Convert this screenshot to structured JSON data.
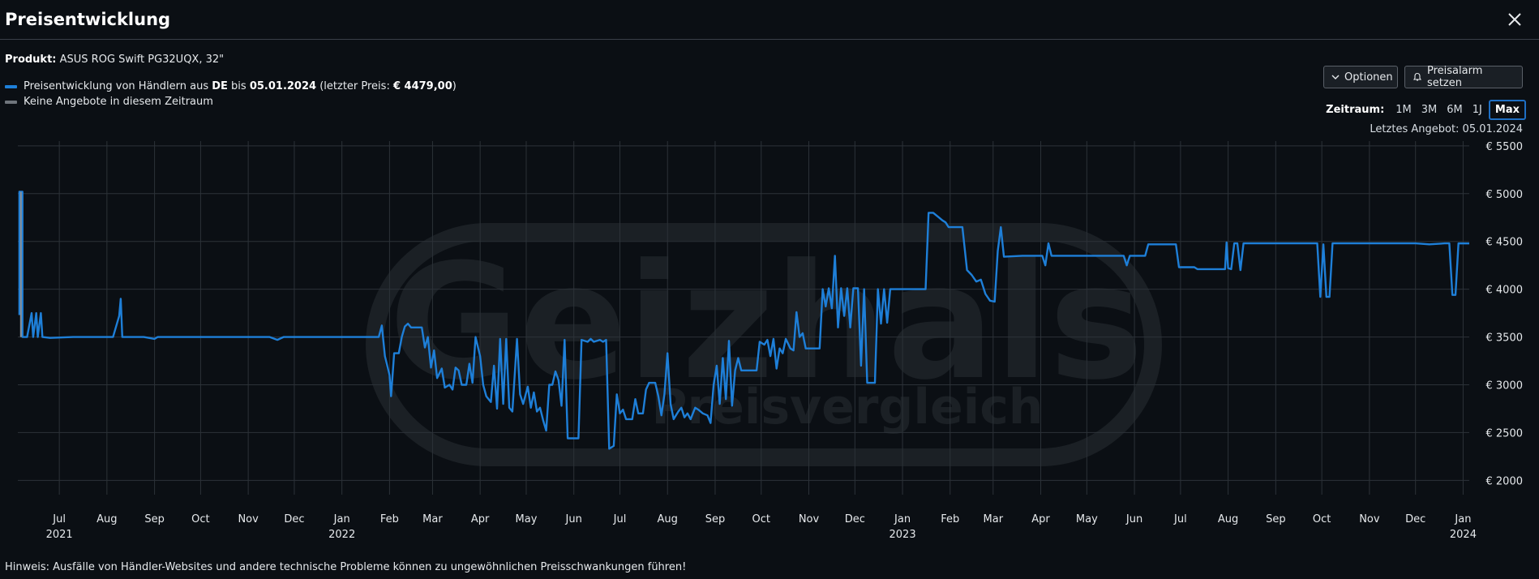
{
  "header": {
    "title": "Preisentwicklung"
  },
  "product": {
    "label": "Produkt:",
    "name": "ASUS ROG Swift PG32UQX, 32\""
  },
  "legend": {
    "series1_prefix": "Preisentwicklung von Händlern aus ",
    "series1_country": "DE",
    "series1_bis": " bis ",
    "series1_date": "05.01.2024",
    "series1_open": " (letzter Preis: ",
    "series1_price": "€ 4479,00",
    "series1_close": ")",
    "series2": "Keine Angebote in diesem Zeitraum"
  },
  "toolbar": {
    "options_label": "Optionen",
    "alarm_label": "Preisalarm setzen"
  },
  "range": {
    "label": "Zeitraum:",
    "options": [
      "1M",
      "3M",
      "6M",
      "1J",
      "Max"
    ],
    "active": "Max"
  },
  "last_offer": "Letztes Angebot: 05.01.2024",
  "watermark": {
    "brand": "Geizhals",
    "tagline": "Preisvergleich"
  },
  "footer": {
    "hint": "Hinweis: Ausfälle von Händler-Websites und andere technische Probleme können zu ungewöhnlichen Preisschwankungen führen!"
  },
  "colors": {
    "series": "#1e7fd8",
    "no_offer": "#8a8f96",
    "grid": "#2c3238",
    "background": "#0b0f14"
  },
  "chart_data": {
    "type": "line",
    "title": "",
    "xlabel": "",
    "ylabel": "",
    "x_range": [
      "2021-06-04",
      "2024-01-05"
    ],
    "ylim": [
      1850,
      5550
    ],
    "y_ticks": [
      2000,
      2500,
      3000,
      3500,
      4000,
      4500,
      5000,
      5500
    ],
    "y_tick_labels": [
      "€ 2000",
      "€ 2500",
      "€ 3000",
      "€ 3500",
      "€ 4000",
      "€ 4500",
      "€ 5000",
      "€ 5500"
    ],
    "x_ticks": [
      {
        "date": "2021-07-01",
        "label": "Jul",
        "year": "2021"
      },
      {
        "date": "2021-08-01",
        "label": "Aug"
      },
      {
        "date": "2021-09-01",
        "label": "Sep"
      },
      {
        "date": "2021-10-01",
        "label": "Oct"
      },
      {
        "date": "2021-11-01",
        "label": "Nov"
      },
      {
        "date": "2021-12-01",
        "label": "Dec"
      },
      {
        "date": "2022-01-01",
        "label": "Jan",
        "year": "2022"
      },
      {
        "date": "2022-02-01",
        "label": "Feb"
      },
      {
        "date": "2022-03-01",
        "label": "Mar"
      },
      {
        "date": "2022-04-01",
        "label": "Apr"
      },
      {
        "date": "2022-05-01",
        "label": "May"
      },
      {
        "date": "2022-06-01",
        "label": "Jun"
      },
      {
        "date": "2022-07-01",
        "label": "Jul"
      },
      {
        "date": "2022-08-01",
        "label": "Aug"
      },
      {
        "date": "2022-09-01",
        "label": "Sep"
      },
      {
        "date": "2022-10-01",
        "label": "Oct"
      },
      {
        "date": "2022-11-01",
        "label": "Nov"
      },
      {
        "date": "2022-12-01",
        "label": "Dec"
      },
      {
        "date": "2023-01-01",
        "label": "Jan",
        "year": "2023"
      },
      {
        "date": "2023-02-01",
        "label": "Feb"
      },
      {
        "date": "2023-03-01",
        "label": "Mar"
      },
      {
        "date": "2023-04-01",
        "label": "Apr"
      },
      {
        "date": "2023-05-01",
        "label": "May"
      },
      {
        "date": "2023-06-01",
        "label": "Jun"
      },
      {
        "date": "2023-07-01",
        "label": "Jul"
      },
      {
        "date": "2023-08-01",
        "label": "Aug"
      },
      {
        "date": "2023-09-01",
        "label": "Sep"
      },
      {
        "date": "2023-10-01",
        "label": "Oct"
      },
      {
        "date": "2023-11-01",
        "label": "Nov"
      },
      {
        "date": "2023-12-01",
        "label": "Dec"
      },
      {
        "date": "2024-01-01",
        "label": "Jan",
        "year": "2024"
      }
    ],
    "grid": true,
    "legend_position": "top-left",
    "series": [
      {
        "name": "Preisentwicklung von Händlern aus DE bis 05.01.2024",
        "points": [
          [
            "2021-06-05",
            3730
          ],
          [
            "2021-06-05",
            5020
          ],
          [
            "2021-06-07",
            5020
          ],
          [
            "2021-06-07",
            3500
          ],
          [
            "2021-06-10",
            3500
          ],
          [
            "2021-06-13",
            3750
          ],
          [
            "2021-06-14",
            3500
          ],
          [
            "2021-06-16",
            3750
          ],
          [
            "2021-06-17",
            3500
          ],
          [
            "2021-06-19",
            3750
          ],
          [
            "2021-06-20",
            3500
          ],
          [
            "2021-06-25",
            3490
          ],
          [
            "2021-07-10",
            3500
          ],
          [
            "2021-08-05",
            3500
          ],
          [
            "2021-08-09",
            3720
          ],
          [
            "2021-08-10",
            3900
          ],
          [
            "2021-08-11",
            3500
          ],
          [
            "2021-08-25",
            3500
          ],
          [
            "2021-09-01",
            3480
          ],
          [
            "2021-09-03",
            3500
          ],
          [
            "2021-11-15",
            3500
          ],
          [
            "2021-11-20",
            3470
          ],
          [
            "2021-11-24",
            3500
          ],
          [
            "2022-01-25",
            3500
          ],
          [
            "2022-01-27",
            3620
          ],
          [
            "2022-01-29",
            3300
          ],
          [
            "2022-02-01",
            3100
          ],
          [
            "2022-02-02",
            2880
          ],
          [
            "2022-02-04",
            3330
          ],
          [
            "2022-02-07",
            3330
          ],
          [
            "2022-02-09",
            3500
          ],
          [
            "2022-02-11",
            3610
          ],
          [
            "2022-02-13",
            3640
          ],
          [
            "2022-02-15",
            3600
          ],
          [
            "2022-02-22",
            3600
          ],
          [
            "2022-02-24",
            3390
          ],
          [
            "2022-02-26",
            3500
          ],
          [
            "2022-02-28",
            3180
          ],
          [
            "2022-03-02",
            3360
          ],
          [
            "2022-03-04",
            3070
          ],
          [
            "2022-03-07",
            3170
          ],
          [
            "2022-03-09",
            2970
          ],
          [
            "2022-03-12",
            3000
          ],
          [
            "2022-03-14",
            2950
          ],
          [
            "2022-03-16",
            3180
          ],
          [
            "2022-03-18",
            3150
          ],
          [
            "2022-03-20",
            3000
          ],
          [
            "2022-03-23",
            3000
          ],
          [
            "2022-03-25",
            3220
          ],
          [
            "2022-03-27",
            3020
          ],
          [
            "2022-03-29",
            3500
          ],
          [
            "2022-04-01",
            3300
          ],
          [
            "2022-04-03",
            3000
          ],
          [
            "2022-04-05",
            2880
          ],
          [
            "2022-04-08",
            2820
          ],
          [
            "2022-04-10",
            3200
          ],
          [
            "2022-04-12",
            2750
          ],
          [
            "2022-04-14",
            3480
          ],
          [
            "2022-04-16",
            2800
          ],
          [
            "2022-04-18",
            3480
          ],
          [
            "2022-04-20",
            2760
          ],
          [
            "2022-04-22",
            2720
          ],
          [
            "2022-04-25",
            3480
          ],
          [
            "2022-04-27",
            2900
          ],
          [
            "2022-04-29",
            2800
          ],
          [
            "2022-05-02",
            2980
          ],
          [
            "2022-05-04",
            2760
          ],
          [
            "2022-05-06",
            2920
          ],
          [
            "2022-05-08",
            2720
          ],
          [
            "2022-05-10",
            2760
          ],
          [
            "2022-05-12",
            2630
          ],
          [
            "2022-05-14",
            2520
          ],
          [
            "2022-05-16",
            3000
          ],
          [
            "2022-05-18",
            3000
          ],
          [
            "2022-05-20",
            3140
          ],
          [
            "2022-05-22",
            3050
          ],
          [
            "2022-05-24",
            2780
          ],
          [
            "2022-05-26",
            3470
          ],
          [
            "2022-05-28",
            2440
          ],
          [
            "2022-06-04",
            2440
          ],
          [
            "2022-06-06",
            3470
          ],
          [
            "2022-06-10",
            3450
          ],
          [
            "2022-06-12",
            3480
          ],
          [
            "2022-06-14",
            3450
          ],
          [
            "2022-06-18",
            3470
          ],
          [
            "2022-06-20",
            3450
          ],
          [
            "2022-06-22",
            3470
          ],
          [
            "2022-06-24",
            2330
          ],
          [
            "2022-06-27",
            2360
          ],
          [
            "2022-06-29",
            2900
          ],
          [
            "2022-07-01",
            2700
          ],
          [
            "2022-07-03",
            2740
          ],
          [
            "2022-07-05",
            2640
          ],
          [
            "2022-07-09",
            2640
          ],
          [
            "2022-07-11",
            2850
          ],
          [
            "2022-07-13",
            2700
          ],
          [
            "2022-07-16",
            2700
          ],
          [
            "2022-07-18",
            2950
          ],
          [
            "2022-07-20",
            3020
          ],
          [
            "2022-07-24",
            3020
          ],
          [
            "2022-07-26",
            2880
          ],
          [
            "2022-07-28",
            2680
          ],
          [
            "2022-07-30",
            2900
          ],
          [
            "2022-08-01",
            3330
          ],
          [
            "2022-08-03",
            2800
          ],
          [
            "2022-08-05",
            2640
          ],
          [
            "2022-08-08",
            2720
          ],
          [
            "2022-08-10",
            2760
          ],
          [
            "2022-08-12",
            2660
          ],
          [
            "2022-08-14",
            2700
          ],
          [
            "2022-08-16",
            2640
          ],
          [
            "2022-08-19",
            2760
          ],
          [
            "2022-08-21",
            2740
          ],
          [
            "2022-08-24",
            2700
          ],
          [
            "2022-08-27",
            2680
          ],
          [
            "2022-08-29",
            2600
          ],
          [
            "2022-08-31",
            3000
          ],
          [
            "2022-09-02",
            3200
          ],
          [
            "2022-09-04",
            2800
          ],
          [
            "2022-09-06",
            3280
          ],
          [
            "2022-09-08",
            2850
          ],
          [
            "2022-09-10",
            3460
          ],
          [
            "2022-09-12",
            2780
          ],
          [
            "2022-09-14",
            3150
          ],
          [
            "2022-09-16",
            3280
          ],
          [
            "2022-09-18",
            3150
          ],
          [
            "2022-09-28",
            3150
          ],
          [
            "2022-09-30",
            3450
          ],
          [
            "2022-10-03",
            3420
          ],
          [
            "2022-10-05",
            3470
          ],
          [
            "2022-10-07",
            3300
          ],
          [
            "2022-10-09",
            3480
          ],
          [
            "2022-10-11",
            3170
          ],
          [
            "2022-10-13",
            3380
          ],
          [
            "2022-10-15",
            3330
          ],
          [
            "2022-10-17",
            3480
          ],
          [
            "2022-10-20",
            3380
          ],
          [
            "2022-10-22",
            3360
          ],
          [
            "2022-10-24",
            3760
          ],
          [
            "2022-10-26",
            3500
          ],
          [
            "2022-10-28",
            3540
          ],
          [
            "2022-10-30",
            3380
          ],
          [
            "2022-11-08",
            3380
          ],
          [
            "2022-11-10",
            4000
          ],
          [
            "2022-11-12",
            3820
          ],
          [
            "2022-11-14",
            4010
          ],
          [
            "2022-11-16",
            3800
          ],
          [
            "2022-11-18",
            4350
          ],
          [
            "2022-11-20",
            3600
          ],
          [
            "2022-11-22",
            4010
          ],
          [
            "2022-11-24",
            3720
          ],
          [
            "2022-11-26",
            4010
          ],
          [
            "2022-11-28",
            3600
          ],
          [
            "2022-11-30",
            4010
          ],
          [
            "2022-12-03",
            4010
          ],
          [
            "2022-12-05",
            3200
          ],
          [
            "2022-12-07",
            4000
          ],
          [
            "2022-12-09",
            3020
          ],
          [
            "2022-12-14",
            3020
          ],
          [
            "2022-12-16",
            4000
          ],
          [
            "2022-12-18",
            3640
          ],
          [
            "2022-12-20",
            4000
          ],
          [
            "2022-12-22",
            3650
          ],
          [
            "2022-12-24",
            4000
          ],
          [
            "2023-01-16",
            4000
          ],
          [
            "2023-01-18",
            4800
          ],
          [
            "2023-01-21",
            4800
          ],
          [
            "2023-01-24",
            4760
          ],
          [
            "2023-01-27",
            4720
          ],
          [
            "2023-01-29",
            4700
          ],
          [
            "2023-01-31",
            4650
          ],
          [
            "2023-02-09",
            4650
          ],
          [
            "2023-02-12",
            4200
          ],
          [
            "2023-02-15",
            4150
          ],
          [
            "2023-02-18",
            4080
          ],
          [
            "2023-02-21",
            4100
          ],
          [
            "2023-02-24",
            3950
          ],
          [
            "2023-02-27",
            3880
          ],
          [
            "2023-03-02",
            3870
          ],
          [
            "2023-03-04",
            4400
          ],
          [
            "2023-03-06",
            4650
          ],
          [
            "2023-03-08",
            4340
          ],
          [
            "2023-03-20",
            4350
          ],
          [
            "2023-04-02",
            4350
          ],
          [
            "2023-04-04",
            4250
          ],
          [
            "2023-04-06",
            4480
          ],
          [
            "2023-04-08",
            4350
          ],
          [
            "2023-05-25",
            4350
          ],
          [
            "2023-05-27",
            4250
          ],
          [
            "2023-05-29",
            4350
          ],
          [
            "2023-06-08",
            4350
          ],
          [
            "2023-06-10",
            4470
          ],
          [
            "2023-06-28",
            4470
          ],
          [
            "2023-06-30",
            4230
          ],
          [
            "2023-07-10",
            4230
          ],
          [
            "2023-07-12",
            4210
          ],
          [
            "2023-07-30",
            4210
          ],
          [
            "2023-07-31",
            4490
          ],
          [
            "2023-08-01",
            4220
          ],
          [
            "2023-08-03",
            4210
          ],
          [
            "2023-08-05",
            4480
          ],
          [
            "2023-08-07",
            4480
          ],
          [
            "2023-08-09",
            4200
          ],
          [
            "2023-08-11",
            4480
          ],
          [
            "2023-09-28",
            4480
          ],
          [
            "2023-09-30",
            3920
          ],
          [
            "2023-10-02",
            4470
          ],
          [
            "2023-10-04",
            3920
          ],
          [
            "2023-10-06",
            3920
          ],
          [
            "2023-10-08",
            4480
          ],
          [
            "2023-12-01",
            4480
          ],
          [
            "2023-12-10",
            4470
          ],
          [
            "2023-12-20",
            4480
          ],
          [
            "2023-12-23",
            4480
          ],
          [
            "2023-12-25",
            3940
          ],
          [
            "2023-12-27",
            3940
          ],
          [
            "2023-12-29",
            4480
          ],
          [
            "2024-01-05",
            4479
          ]
        ]
      }
    ]
  }
}
